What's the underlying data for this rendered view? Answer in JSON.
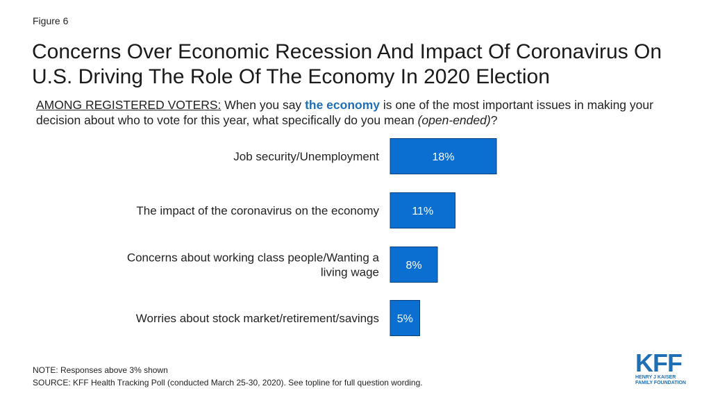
{
  "figure_label": "Figure 6",
  "title": "Concerns Over Economic Recession And Impact Of Coronavirus On U.S. Driving The Role Of The Economy In 2020 Election",
  "subtitle": {
    "prefix": "AMONG REGISTERED VOTERS:",
    "text_before": " When you say ",
    "highlight": "the economy",
    "text_after": " is one of the most important issues in making your decision about who to vote for this year, what specifically do you mean ",
    "italic": "(open-ended)",
    "end": "?"
  },
  "colors": {
    "bar": "#0a6fd1",
    "bar_border": "#0a3f7a",
    "bar_label": "#ffffff",
    "accent": "#1f6fb5"
  },
  "chart_data": {
    "type": "bar",
    "orientation": "horizontal",
    "categories": [
      "Job security/Unemployment",
      "The impact of the coronavirus on the economy",
      "Concerns about working class people/Wanting a living wage",
      "Worries about stock market/retirement/savings"
    ],
    "values": [
      18,
      11,
      8,
      5
    ],
    "value_labels": [
      "18%",
      "11%",
      "8%",
      "5%"
    ],
    "xlim": [
      0,
      18
    ],
    "grid": false,
    "legend": "none"
  },
  "footer": {
    "note": "NOTE: Responses above 3% shown",
    "source": "SOURCE: KFF Health Tracking Poll (conducted March 25-30, 2020). See topline for full question wording."
  },
  "logo": {
    "mark": "KFF",
    "line1": "HENRY J KAISER",
    "line2": "FAMILY FOUNDATION"
  }
}
